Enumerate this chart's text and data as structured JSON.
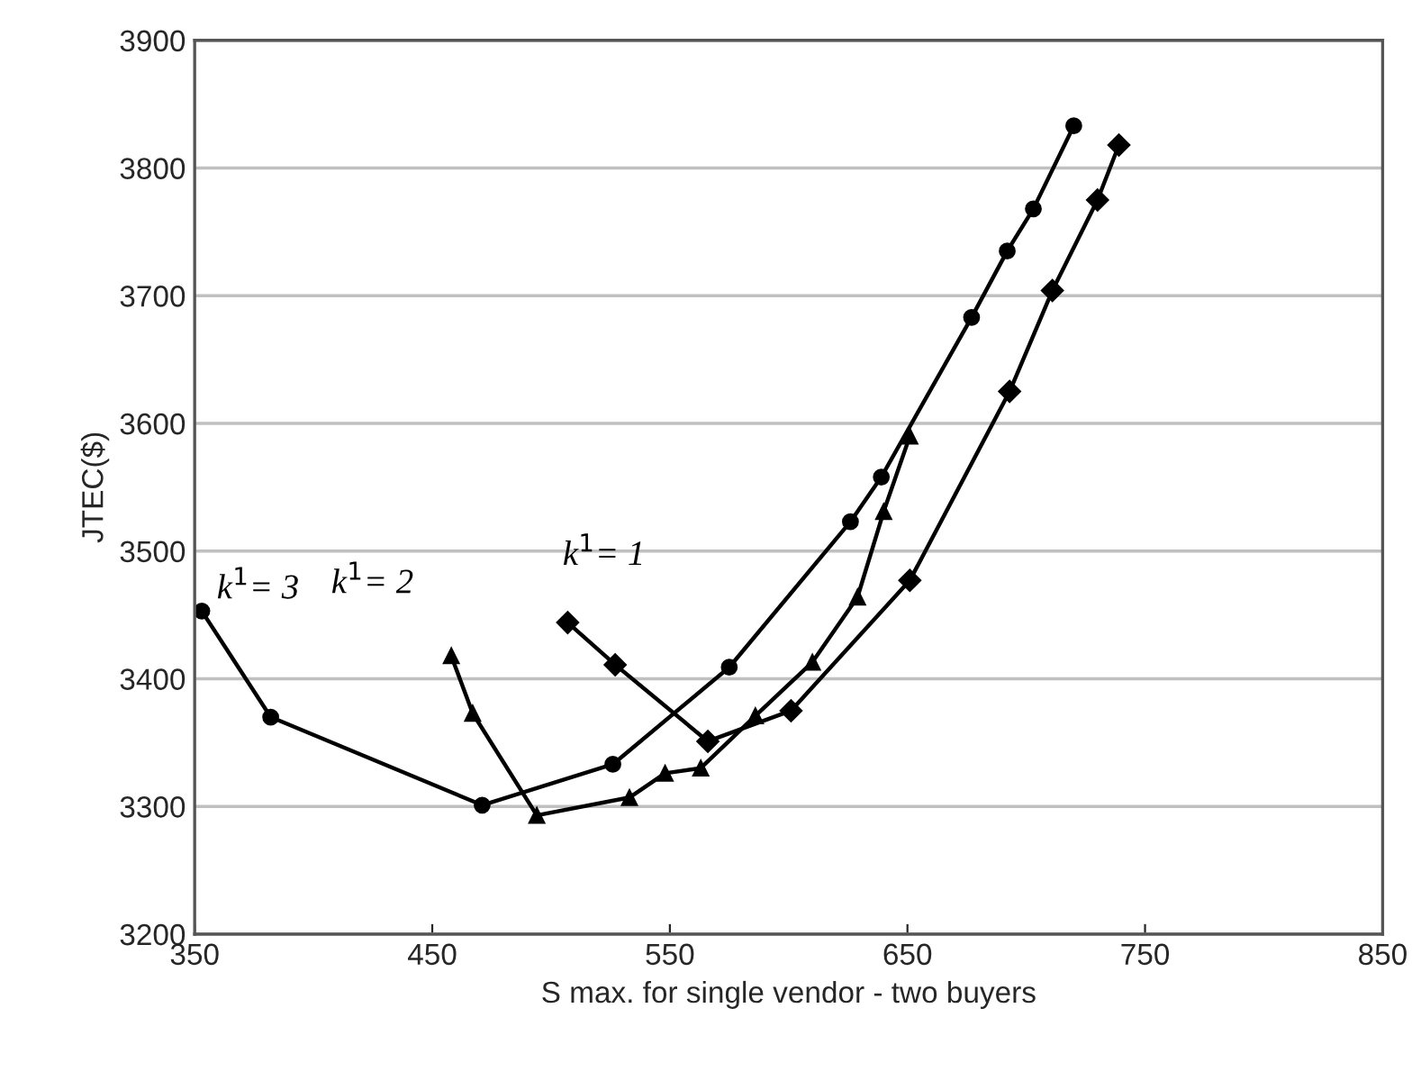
{
  "chart_data": {
    "type": "line",
    "xlabel": "S max. for single vendor - two buyers",
    "ylabel": "JTEC($)",
    "xlim": [
      350,
      850
    ],
    "xticks": [
      350,
      450,
      550,
      650,
      750,
      850
    ],
    "ylim": [
      3200,
      3900
    ],
    "yticks": [
      3200,
      3300,
      3400,
      3500,
      3600,
      3700,
      3800,
      3900
    ],
    "grid": "y",
    "line_style": "solid",
    "series": [
      {
        "name": "k$^{1}$= 3",
        "color": "#000000",
        "marker": "circle",
        "x": [
          353,
          382,
          471,
          526,
          575,
          626,
          639,
          677,
          692,
          703,
          720
        ],
        "values": [
          3453,
          3370,
          3301,
          3333,
          3409,
          3523,
          3558,
          3683,
          3735,
          3768,
          3833
        ]
      },
      {
        "name": "k$^{1}$= 2",
        "color": "#000000",
        "marker": "triangle",
        "x": [
          458,
          467,
          494,
          533,
          548,
          563,
          586,
          610,
          629,
          640,
          651
        ],
        "values": [
          3418,
          3373,
          3293,
          3307,
          3326,
          3330,
          3371,
          3413,
          3464,
          3531,
          3590
        ]
      },
      {
        "name": "k$^{1}$= 1",
        "color": "#000000",
        "marker": "diamond",
        "x": [
          507,
          527,
          566,
          601,
          651,
          693,
          711,
          730,
          739
        ],
        "values": [
          3444,
          3411,
          3351,
          3375,
          3477,
          3625,
          3704,
          3775,
          3818
        ]
      }
    ]
  }
}
